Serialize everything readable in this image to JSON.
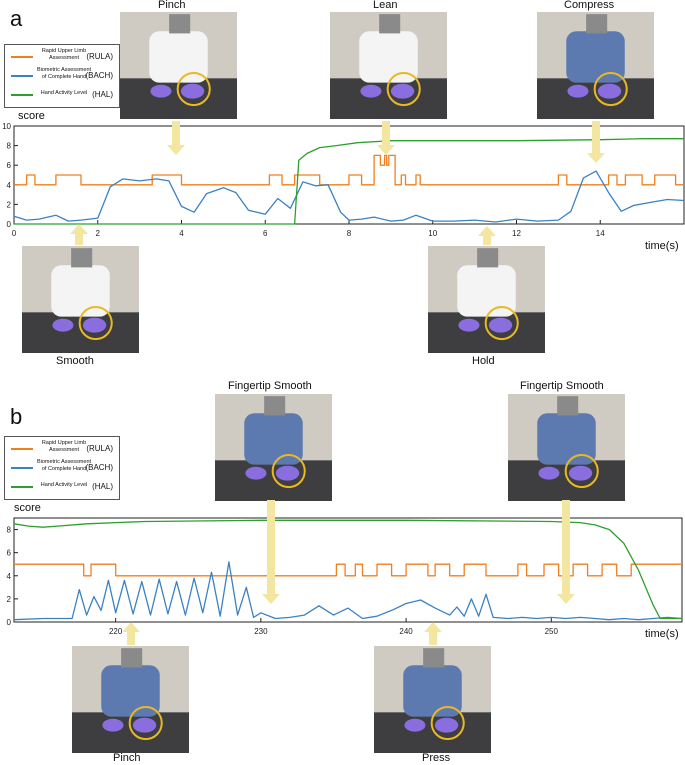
{
  "legend": {
    "rula": {
      "name": "Rapid Upper Limb Assessment",
      "abbr": "(RULA)",
      "color": "#f07f1f"
    },
    "bach": {
      "name": "Biometric Assessment of Complete Hand",
      "abbr": "(BACH)",
      "color": "#3b82c4"
    },
    "hal": {
      "name": "Hand Activity Level",
      "abbr": "(HAL)",
      "color": "#2ca02c"
    }
  },
  "arrow_color": "#f2e6a0",
  "highlight_color": "#e8b923",
  "panels": {
    "a": {
      "letter": "a",
      "ylabel": "score",
      "xlabel": "time(s)",
      "photos_top": [
        "Pinch",
        "Lean",
        "Compress"
      ],
      "photos_bottom": [
        "Smooth",
        "Hold"
      ]
    },
    "b": {
      "letter": "b",
      "ylabel": "score",
      "xlabel": "time(s)",
      "photos_top": [
        "Fingertip Smooth",
        "Fingertip Smooth"
      ],
      "photos_bottom": [
        "Pinch",
        "Press"
      ]
    }
  },
  "chart_data": [
    {
      "type": "line",
      "xlabel": "time(s)",
      "ylabel": "score",
      "xlim": [
        0,
        16
      ],
      "ylim": [
        0,
        10
      ],
      "xticks": [
        0,
        2,
        4,
        6,
        8,
        10,
        12,
        14
      ],
      "yticks": [
        0,
        2,
        4,
        6,
        8,
        10
      ],
      "series": [
        {
          "name": "Rapid Upper Limb Assessment (RULA)",
          "color": "#f07f1f",
          "x": [
            0,
            0.3,
            0.3,
            0.5,
            0.5,
            1.0,
            1.0,
            1.6,
            1.6,
            3.3,
            3.3,
            4.0,
            4.0,
            6.1,
            6.1,
            6.4,
            6.4,
            6.7,
            6.7,
            7.3,
            7.3,
            8.0,
            8.0,
            8.3,
            8.3,
            8.6,
            8.6,
            8.75,
            8.75,
            8.85,
            8.85,
            8.9,
            8.9,
            8.95,
            8.95,
            9.1,
            9.1,
            9.25,
            9.25,
            9.35,
            9.35,
            9.6,
            9.6,
            9.7,
            9.7,
            13.0,
            13.0,
            13.2,
            13.2,
            14.2,
            14.2,
            14.4,
            14.4,
            14.6,
            14.6,
            15.0,
            15.0,
            15.3,
            15.3,
            15.8,
            15.8,
            16.0
          ],
          "y": [
            4,
            4,
            5,
            5,
            4,
            4,
            5,
            5,
            4,
            4,
            5,
            5,
            4,
            4,
            5,
            5,
            4,
            4,
            5,
            5,
            4,
            4,
            5,
            5,
            4,
            4,
            7,
            7,
            6,
            6,
            7,
            7,
            6,
            6,
            7,
            7,
            4,
            4,
            5,
            5,
            4,
            4,
            5,
            5,
            4,
            4,
            5,
            5,
            4,
            4,
            5,
            5,
            4,
            4,
            5,
            5,
            4,
            4,
            5,
            5,
            4,
            4
          ]
        },
        {
          "name": "Biometric Assessment of Complete Hand (BACH)",
          "color": "#3b82c4",
          "x": [
            0,
            0.3,
            0.6,
            1.0,
            1.3,
            1.6,
            2.0,
            2.3,
            2.6,
            3.0,
            3.4,
            3.7,
            4.0,
            4.3,
            4.6,
            5.0,
            5.3,
            5.6,
            6.0,
            6.3,
            6.6,
            6.9,
            7.2,
            7.5,
            7.8,
            8.0,
            8.3,
            8.6,
            9.0,
            9.3,
            9.6,
            10.0,
            10.5,
            11.0,
            11.5,
            12.0,
            12.5,
            13.0,
            13.3,
            13.6,
            13.9,
            14.2,
            14.5,
            14.8,
            15.2,
            15.6,
            16.0
          ],
          "y": [
            0.8,
            0.4,
            0.5,
            0.9,
            0.3,
            0.4,
            0.6,
            3.8,
            4.6,
            4.4,
            4.6,
            4.4,
            1.8,
            1.2,
            3.1,
            3.7,
            3.2,
            1.4,
            1.0,
            2.6,
            1.6,
            4.3,
            3.9,
            4.0,
            1.2,
            0.4,
            0.5,
            0.7,
            0.3,
            0.4,
            0.9,
            0.3,
            0.3,
            0.4,
            0.2,
            0.5,
            0.3,
            0.4,
            1.3,
            4.7,
            5.4,
            3.2,
            1.3,
            1.9,
            2.2,
            2.5,
            2.4
          ]
        },
        {
          "name": "Hand Activity Level (HAL)",
          "color": "#2ca02c",
          "x": [
            0,
            6.5,
            6.7,
            6.8,
            7.0,
            7.3,
            7.7,
            8.2,
            9.0,
            10.0,
            12.0,
            14.0,
            15.0,
            16.0
          ],
          "y": [
            0,
            0,
            0,
            6.5,
            7.2,
            7.8,
            8.0,
            8.3,
            8.5,
            8.5,
            8.5,
            8.6,
            8.7,
            8.7
          ]
        }
      ]
    },
    {
      "type": "line",
      "xlabel": "time(s)",
      "ylabel": "score",
      "xlim": [
        213,
        259
      ],
      "ylim": [
        0,
        9
      ],
      "xticks": [
        220,
        230,
        240,
        250
      ],
      "yticks": [
        0,
        2,
        4,
        6,
        8
      ],
      "series": [
        {
          "name": "Rapid Upper Limb Assessment (RULA)",
          "color": "#f07f1f",
          "x": [
            213,
            217.8,
            217.8,
            218.3,
            218.3,
            220.0,
            220.0,
            220.5,
            220.5,
            235.2,
            235.2,
            235.8,
            235.8,
            236.5,
            236.5,
            237.0,
            237.0,
            238.0,
            238.0,
            239.0,
            239.0,
            240.0,
            240.0,
            241.5,
            241.5,
            242.0,
            242.0,
            243.0,
            243.0,
            244.0,
            244.0,
            245.5,
            245.5,
            246.0,
            246.0,
            247.7,
            247.7,
            248.3,
            248.3,
            249.5,
            249.5,
            250.5,
            250.5,
            251.5,
            251.5,
            252.5,
            252.5,
            253.5,
            253.5,
            254.5,
            254.5,
            255.5,
            255.5,
            256.0,
            256.0,
            259.0
          ],
          "y": [
            5,
            5,
            4,
            4,
            5,
            5,
            4,
            4,
            4,
            4,
            5,
            5,
            4,
            4,
            5,
            5,
            4,
            4,
            5,
            5,
            4,
            4,
            5,
            5,
            4,
            4,
            5,
            5,
            4,
            4,
            5,
            5,
            4,
            4,
            4,
            4,
            5,
            5,
            4,
            4,
            5,
            5,
            4,
            4,
            5,
            5,
            4,
            4,
            5,
            5,
            4,
            4,
            5,
            5,
            5,
            5
          ]
        },
        {
          "name": "Biometric Assessment of Complete Hand (BACH)",
          "color": "#3b82c4",
          "x": [
            213,
            215,
            217,
            217.5,
            218,
            218.5,
            219,
            219.5,
            220,
            220.6,
            221.2,
            221.8,
            222.4,
            223,
            223.6,
            224.2,
            224.8,
            225.4,
            226,
            226.6,
            227.2,
            227.8,
            228.4,
            229,
            229.5,
            230,
            231,
            232,
            233,
            234,
            235,
            236,
            237,
            238,
            239,
            240,
            241,
            242,
            243,
            243.5,
            244,
            244.5,
            245,
            245.5,
            246,
            247,
            248,
            249,
            250,
            251,
            252,
            253,
            254,
            255,
            256,
            257,
            258,
            259
          ],
          "y": [
            0.2,
            0.3,
            0.3,
            2.8,
            0.6,
            2.2,
            1.0,
            3.6,
            0.8,
            3.6,
            0.7,
            3.5,
            0.6,
            3.7,
            0.7,
            3.5,
            0.6,
            3.8,
            0.8,
            4.3,
            0.5,
            5.2,
            0.6,
            3.0,
            0.4,
            0.8,
            0.3,
            0.4,
            0.6,
            1.4,
            0.6,
            1.2,
            0.3,
            0.5,
            1.0,
            1.6,
            1.9,
            1.2,
            0.6,
            1.3,
            0.5,
            2.0,
            0.5,
            2.4,
            0.4,
            0.3,
            0.4,
            0.3,
            0.4,
            0.3,
            0.4,
            0.3,
            0.2,
            0.3,
            0.2,
            0.3,
            0.4,
            0.3
          ]
        },
        {
          "name": "Hand Activity Level (HAL)",
          "color": "#2ca02c",
          "x": [
            213,
            214,
            215,
            216,
            218,
            222,
            230,
            240,
            250,
            252,
            253,
            254,
            255,
            256,
            257,
            257.5,
            259
          ],
          "y": [
            8.5,
            8.3,
            8.2,
            8.3,
            8.5,
            8.7,
            8.8,
            8.8,
            8.7,
            8.6,
            8.4,
            8.0,
            6.8,
            4.5,
            1.5,
            0.3,
            0.3
          ]
        }
      ]
    }
  ]
}
